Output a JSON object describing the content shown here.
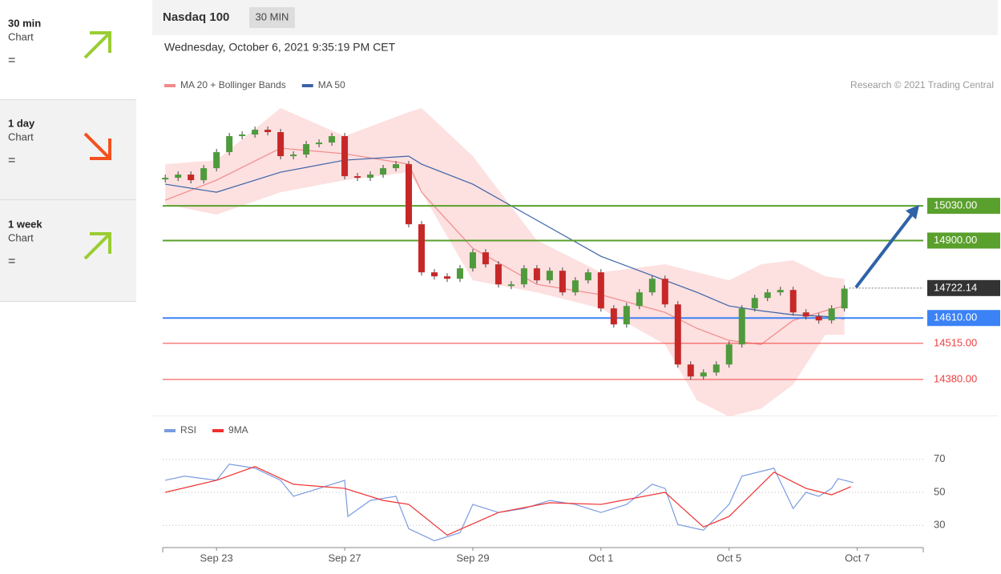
{
  "sidebar": [
    {
      "period": "30 min",
      "label": "Chart",
      "sign": "="
    },
    {
      "period": "1 day",
      "label": "Chart",
      "sign": "="
    },
    {
      "period": "1 week",
      "label": "Chart",
      "sign": "="
    }
  ],
  "header": {
    "title": "Nasdaq 100",
    "interval": "30 MIN",
    "date": "Wednesday, October 6, 2021 9:35:19 PM CET",
    "credit": "Research © 2021 Trading Central"
  },
  "chart_data": [
    {
      "type": "candlestick",
      "x": [
        -0.8,
        -0.6,
        -0.4,
        -0.2,
        0,
        0.2,
        0.4,
        0.6,
        0.8,
        1,
        1.2,
        1.4,
        1.6,
        1.8,
        2,
        2.2,
        2.4,
        2.6,
        2.8,
        3,
        3.2,
        3.4,
        3.6,
        3.8,
        4,
        4.2,
        4.4,
        4.6,
        4.8,
        5,
        5.2,
        5.4,
        5.6,
        5.8,
        6,
        6.2,
        6.4,
        6.6,
        6.8,
        7,
        7.2,
        7.4,
        7.6,
        7.8,
        8,
        8.2,
        8.4,
        8.6,
        8.8,
        9,
        9.2,
        9.4,
        9.6,
        9.8
      ],
      "values": [
        15135,
        15147,
        15126,
        15171,
        15231,
        15291,
        15297,
        15315,
        15306,
        15216,
        15222,
        15261,
        15267,
        15291,
        15141,
        15135,
        15147,
        15171,
        15186,
        14961,
        14781,
        14766,
        14757,
        14796,
        14856,
        14811,
        14736,
        14736,
        14796,
        14751,
        14787,
        14706,
        14751,
        14781,
        14646,
        14586,
        14655,
        14706,
        14757,
        14661,
        14436,
        14391,
        14406,
        14436,
        14511,
        14646,
        14685,
        14706,
        14715,
        14631,
        14616,
        14601,
        14646,
        14720
      ],
      "up_color": "#4f9a3c",
      "down_color": "#c62828",
      "series": [
        {
          "name": "MA 20 + Bollinger Bands",
          "color": "#f08a8a",
          "band_color": "#fde0e0",
          "x": [
            -0.8,
            0,
            1,
            2,
            3,
            3.2,
            4,
            5,
            6,
            7,
            7.5,
            8,
            8.5,
            9,
            9.5,
            9.8
          ],
          "values": [
            15051,
            15126,
            15246,
            15225,
            15186,
            15081,
            14871,
            14736,
            14697,
            14631,
            14571,
            14526,
            14511,
            14601,
            14637,
            14655
          ],
          "upper": [
            15186,
            15201,
            15396,
            15291,
            15381,
            15396,
            15216,
            14901,
            14781,
            14811,
            14781,
            14751,
            14811,
            14826,
            14766,
            14757
          ],
          "lower": [
            15036,
            14997,
            15081,
            15126,
            15156,
            15081,
            14751,
            14706,
            14646,
            14511,
            14301,
            14241,
            14271,
            14361,
            14547,
            14547
          ]
        },
        {
          "name": "MA 50",
          "color": "#3b64a8",
          "x": [
            -0.8,
            0,
            1,
            2,
            3,
            3.2,
            4,
            5,
            6,
            7,
            7.5,
            8,
            8.5,
            9,
            9.5,
            9.8
          ],
          "values": [
            15111,
            15081,
            15156,
            15201,
            15216,
            15186,
            15111,
            14976,
            14841,
            14751,
            14706,
            14655,
            14637,
            14622,
            14616,
            14607
          ]
        }
      ],
      "levels": [
        {
          "value": 15030,
          "label": "15030.00",
          "color": "#5aa02c",
          "style": "box"
        },
        {
          "value": 14900,
          "label": "14900.00",
          "color": "#5aa02c",
          "style": "box"
        },
        {
          "value": 14722.14,
          "label": "14722.14",
          "color": "#333333",
          "style": "marker"
        },
        {
          "value": 14610,
          "label": "14610.00",
          "color": "#3b82f6",
          "style": "box"
        },
        {
          "value": 14515,
          "label": "14515.00",
          "color": "#f04040",
          "style": "text"
        },
        {
          "value": 14380,
          "label": "14380.00",
          "color": "#f04040",
          "style": "text"
        }
      ],
      "xlim": [
        -0.84,
        11.03
      ],
      "xticks": [
        {
          "value": 0,
          "label": "Sep 23"
        },
        {
          "value": 2,
          "label": "Sep 27"
        },
        {
          "value": 4,
          "label": "Sep 29"
        },
        {
          "value": 6,
          "label": "Oct 1"
        },
        {
          "value": 8,
          "label": "Oct 5"
        },
        {
          "value": 10,
          "label": "Oct 7"
        }
      ],
      "ylim": [
        14230,
        15441
      ]
    },
    {
      "type": "line",
      "series": [
        {
          "name": "RSI",
          "color": "#7b9be0",
          "x": [
            -0.8,
            -0.5,
            0,
            0.2,
            0.6,
            1,
            1.2,
            1.6,
            2,
            2.05,
            2.4,
            2.8,
            3,
            3.4,
            3.8,
            4,
            4.4,
            4.8,
            5.2,
            5.6,
            6,
            6.4,
            6.8,
            7,
            7.2,
            7.6,
            8,
            8.2,
            8.7,
            9,
            9.2,
            9.4,
            9.6,
            9.7,
            9.94
          ],
          "values": [
            57.3,
            59.8,
            57.3,
            67.1,
            64.6,
            57.3,
            47.6,
            52.4,
            57.3,
            35.4,
            45.1,
            47.6,
            28,
            20.7,
            25.6,
            42.7,
            37.8,
            40.2,
            45.1,
            42.7,
            37.8,
            42.7,
            54.9,
            52.4,
            30.5,
            27.1,
            42.7,
            59.8,
            64.6,
            40.2,
            50,
            47.6,
            52.4,
            58.3,
            55.9
          ]
        },
        {
          "name": "9MA",
          "color": "#f03030",
          "x": [
            -0.8,
            0,
            0.6,
            1.2,
            2,
            2.6,
            3,
            3.6,
            4.4,
            5.2,
            6,
            7,
            7.6,
            8,
            8.7,
            9.2,
            9.6,
            9.9
          ],
          "values": [
            50,
            57.3,
            65.6,
            54.9,
            52.4,
            45.1,
            42.7,
            24.1,
            37.8,
            43.7,
            42.7,
            50,
            29,
            35.4,
            62.2,
            52.4,
            48.5,
            53.4
          ]
        }
      ],
      "xlim": [
        -0.84,
        11.03
      ],
      "ylim": [
        18,
        82
      ],
      "yticks": [
        30,
        50,
        70
      ],
      "grid": true
    }
  ]
}
